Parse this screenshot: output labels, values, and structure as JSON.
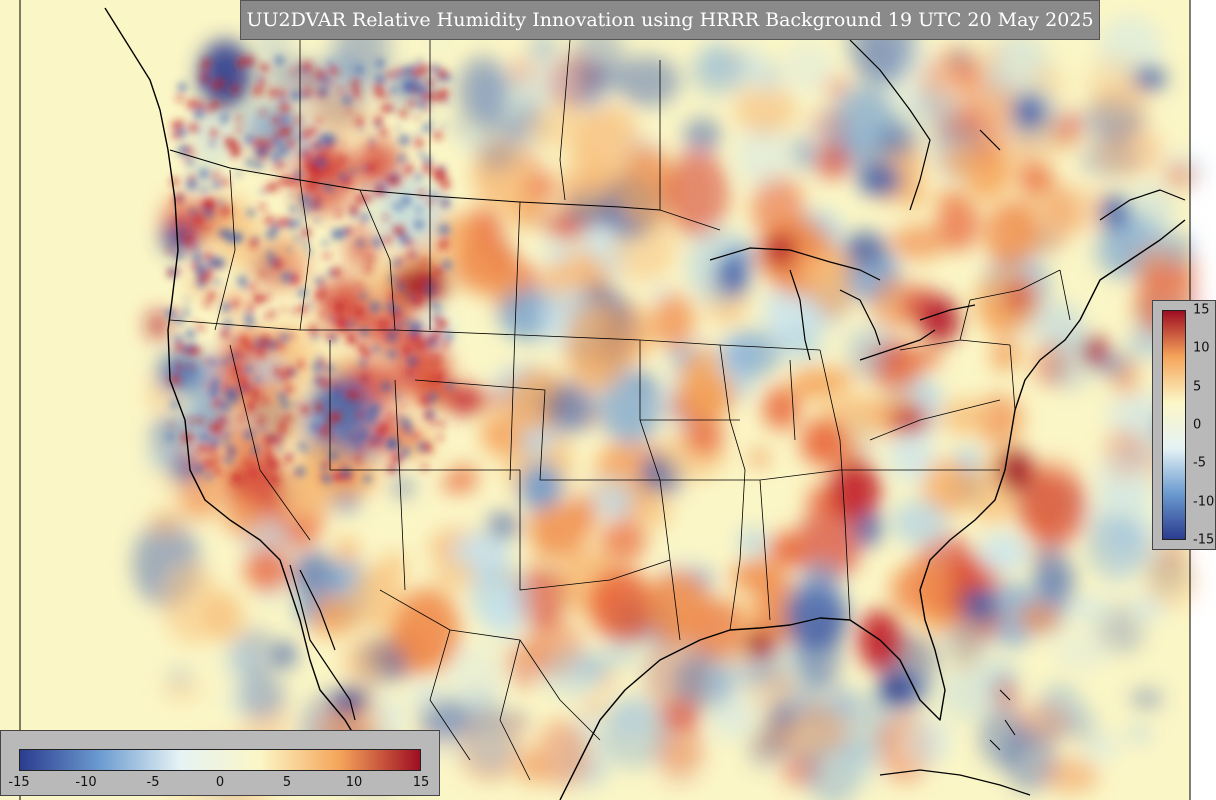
{
  "title": "UU2DVAR Relative Humidity Innovation using HRRR Background 19 UTC 20 May 2025",
  "colorbar": {
    "min": -15,
    "max": 15,
    "ticks": [
      "-15",
      "-10",
      "-5",
      "0",
      "5",
      "10",
      "15"
    ],
    "right_ticks": [
      "15",
      "10",
      "5",
      "0",
      "-5",
      "-10",
      "-15"
    ],
    "colors": {
      "negative_extreme": "#2b3c8f",
      "negative": "#6b9bd0",
      "neutral_low": "#e6f3f5",
      "neutral_high": "#fbf6c6",
      "positive": "#f5a45a",
      "positive_extreme": "#9e0d22"
    }
  }
}
